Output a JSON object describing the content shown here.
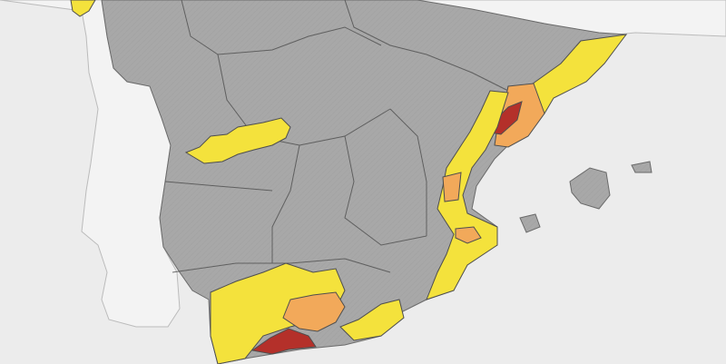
{
  "map": {
    "kind": "weather-warning-map",
    "region": "Spain",
    "labels_shown": false,
    "legend_shown": false
  },
  "colors": {
    "sea": "#ececec",
    "land_spain": "#a6a6a6",
    "land_other": "#f2f2f2",
    "land_portugal_france": "#f4f4f4",
    "yellow": "#f4e23c",
    "orange": "#f2a95a",
    "red": "#b4302a",
    "border": "#5a5a5a"
  },
  "warning_levels": [
    "yellow",
    "orange",
    "red"
  ],
  "warning_areas": [
    {
      "name": "galicia-coast",
      "level": "yellow"
    },
    {
      "name": "central-system",
      "level": "yellow"
    },
    {
      "name": "catalonia-coast",
      "level": "yellow"
    },
    {
      "name": "tarragona-ebro",
      "level": "orange"
    },
    {
      "name": "ebro-delta",
      "level": "red"
    },
    {
      "name": "valencia-coast",
      "level": "yellow"
    },
    {
      "name": "castellon-inland",
      "level": "orange"
    },
    {
      "name": "valencia-inland",
      "level": "orange"
    },
    {
      "name": "murcia-coast",
      "level": "yellow"
    },
    {
      "name": "andalucia-west",
      "level": "yellow"
    },
    {
      "name": "granada-almeria",
      "level": "orange"
    },
    {
      "name": "malaga-coast",
      "level": "red"
    }
  ]
}
